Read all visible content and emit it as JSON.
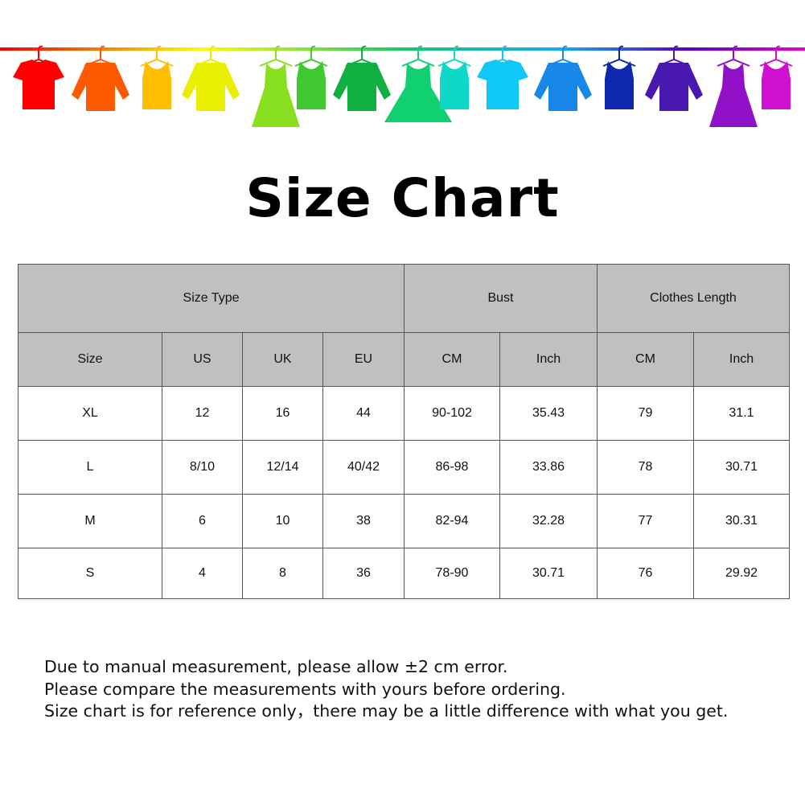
{
  "title": "Size Chart",
  "banner": {
    "icon": "clothes-on-line-illustration",
    "colors": [
      "#ff0000",
      "#ff5a00",
      "#ffbe00",
      "#e8f000",
      "#88e020",
      "#40c830",
      "#10b040",
      "#10d070",
      "#10d8c8",
      "#10c8f8",
      "#1888e8",
      "#1028b0",
      "#4818b0",
      "#9010c8",
      "#d010d0",
      "#f010b8"
    ]
  },
  "table": {
    "group_headers": [
      "Size Type",
      "Bust",
      "Clothes Length"
    ],
    "headers": [
      "Size",
      "US",
      "UK",
      "EU",
      "CM",
      "Inch",
      "CM",
      "Inch"
    ],
    "rows": [
      [
        "XL",
        "12",
        "16",
        "44",
        "90-102",
        "35.43",
        "79",
        "31.1"
      ],
      [
        "L",
        "8/10",
        "12/14",
        "40/42",
        "86-98",
        "33.86",
        "78",
        "30.71"
      ],
      [
        "M",
        "6",
        "10",
        "38",
        "82-94",
        "32.28",
        "77",
        "30.31"
      ],
      [
        "S",
        "4",
        "8",
        "36",
        "78-90",
        "30.71",
        "76",
        "29.92"
      ]
    ]
  },
  "notes": [
    "Due to manual measurement, please allow ±2 cm error.",
    "Please compare the measurements with yours before ordering.",
    "Size chart is for reference only，there may be a little difference with what you get."
  ]
}
